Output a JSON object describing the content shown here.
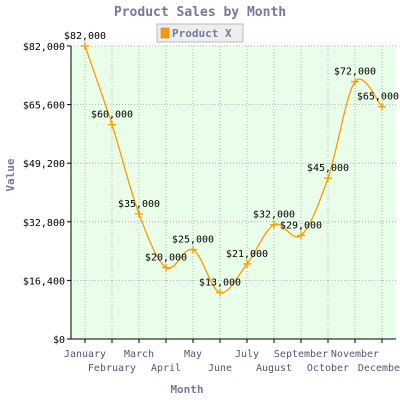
{
  "chart_data": {
    "type": "line",
    "title": "Product Sales by Month",
    "xlabel": "Month",
    "ylabel": "Value",
    "categories": [
      "January",
      "February",
      "March",
      "April",
      "May",
      "June",
      "July",
      "August",
      "September",
      "October",
      "November",
      "December"
    ],
    "series": [
      {
        "name": "Product X",
        "values": [
          82000,
          60000,
          35000,
          20000,
          25000,
          13000,
          21000,
          32000,
          29000,
          45000,
          72000,
          65000
        ],
        "labels": [
          "$82,000",
          "$60,000",
          "$35,000",
          "$20,000",
          "$25,000",
          "$13,000",
          "$21,000",
          "$32,000",
          "$29,000",
          "$45,000",
          "$72,000",
          "$65,000"
        ]
      }
    ],
    "ylim": [
      0,
      82000
    ],
    "yticks": [
      0,
      16400,
      32800,
      49200,
      65600,
      82000
    ],
    "ytick_labels": [
      "$0",
      "$16,400",
      "$32,800",
      "$49,200",
      "$65,600",
      "$82,000"
    ],
    "grid": true,
    "legend_position": "top",
    "colors": {
      "series": "#ff9900",
      "plot_background": "#eaffea",
      "grid": "#99aa99",
      "text": "#777799"
    }
  }
}
